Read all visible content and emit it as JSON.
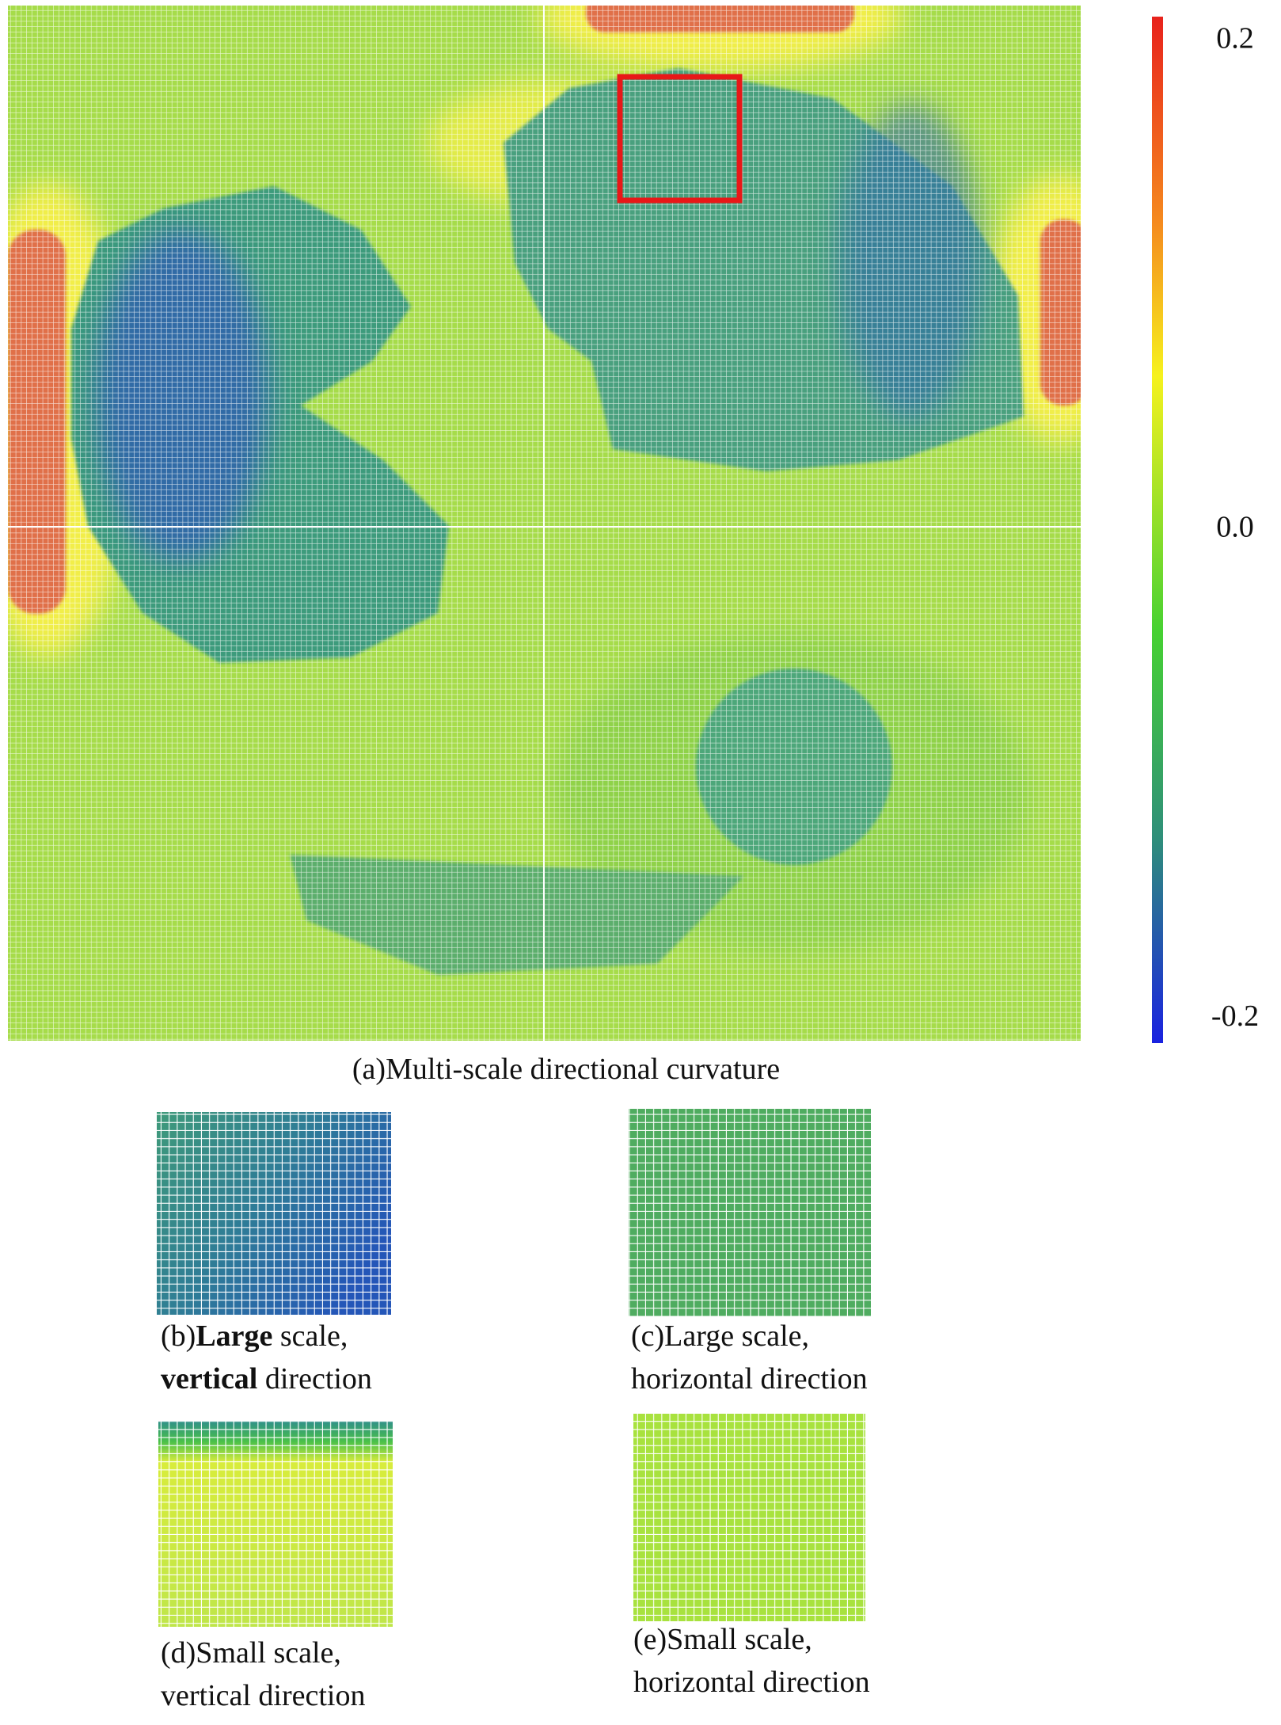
{
  "figure": {
    "colorbar": {
      "clim": [
        -0.21,
        0.21
      ],
      "ticks": [
        0.2,
        {
          "value": 0,
          "label": "0.0"
        },
        -0.2
      ]
    },
    "captions": {
      "a": [
        [
          {
            "text": "(a)Multi-scale directional curvature",
            "bold": false
          }
        ]
      ],
      "b": [
        [
          {
            "text": "(b)",
            "bold": false
          },
          {
            "text": "Large",
            "bold": true
          },
          {
            "text": " scale,",
            "bold": false
          }
        ],
        [
          {
            "text": "vertical",
            "bold": true
          },
          {
            "text": " direction",
            "bold": false
          }
        ]
      ],
      "c": [
        [
          {
            "text": "(c)Large scale,",
            "bold": false
          }
        ],
        [
          {
            "text": "horizontal direction",
            "bold": false
          }
        ]
      ],
      "d": [
        [
          {
            "text": "(d)Small scale,",
            "bold": false
          }
        ],
        [
          {
            "text": "vertical direction",
            "bold": false
          }
        ]
      ],
      "e": [
        [
          {
            "text": "(e)Small scale,",
            "bold": false
          }
        ],
        [
          {
            "text": "horizontal direction",
            "bold": false
          }
        ]
      ]
    }
  }
}
